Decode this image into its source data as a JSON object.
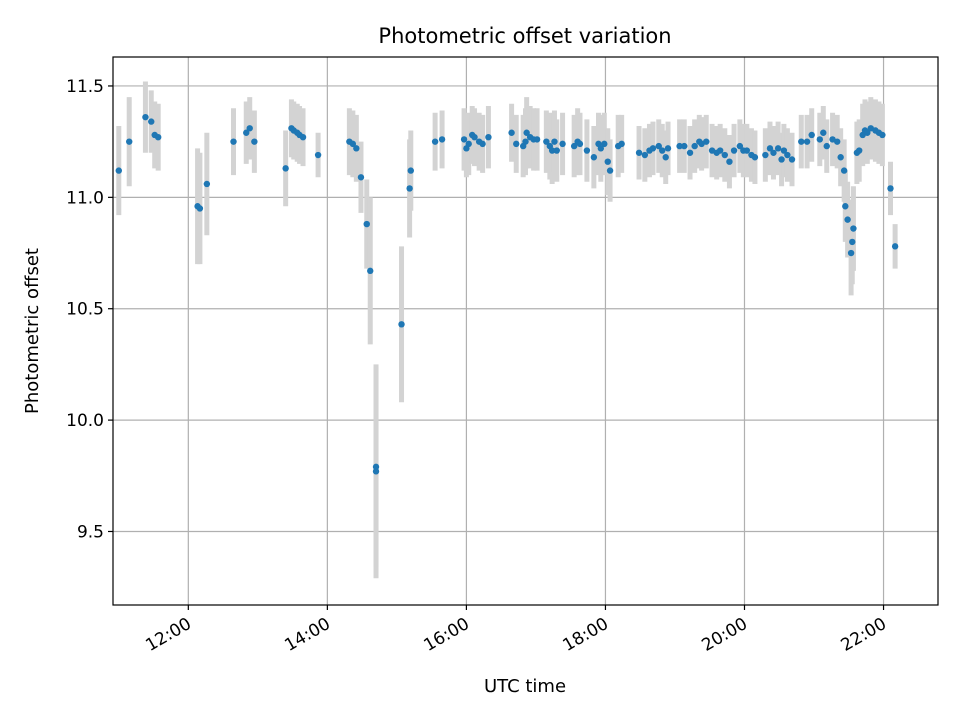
{
  "chart_data": {
    "type": "scatter",
    "title": "Photometric offset variation",
    "xlabel": "UTC time",
    "ylabel": "Photometric offset",
    "xlim": [
      "10:55",
      "22:47"
    ],
    "ylim": [
      9.17,
      11.63
    ],
    "x_ticks": [
      "12:00",
      "14:00",
      "16:00",
      "18:00",
      "20:00",
      "22:00"
    ],
    "y_ticks": [
      9.5,
      10.0,
      10.5,
      11.0,
      11.5
    ],
    "y_tick_labels": [
      "9.5",
      "10.0",
      "10.5",
      "11.0",
      "11.5"
    ],
    "x_tick_rotation_deg": 30,
    "grid": true,
    "legend": "none",
    "colors": {
      "point": "#1f77b4",
      "error_bar": "#d3d3d3",
      "grid": "#b0b0b0"
    },
    "series": [
      {
        "x": [
          "11:00",
          "11:09",
          "11:23",
          "11:28",
          "11:31",
          "11:34",
          "12:08",
          "12:10",
          "12:16",
          "12:39",
          "12:50",
          "12:53",
          "12:57",
          "13:24",
          "13:29",
          "13:31",
          "13:34",
          "13:36",
          "13:39",
          "13:52",
          "14:19",
          "14:22",
          "14:25",
          "14:29",
          "14:34",
          "14:37",
          "14:42",
          "14:42",
          "15:04",
          "15:11",
          "15:12",
          "15:33",
          "15:39",
          "15:58",
          "16:00",
          "16:02",
          "16:05",
          "16:07",
          "16:11",
          "16:14",
          "16:19",
          "16:39",
          "16:43",
          "16:49",
          "16:51",
          "16:52",
          "16:55",
          "16:58",
          "17:01",
          "17:09",
          "17:12",
          "17:14",
          "17:16",
          "17:18",
          "17:23",
          "17:33",
          "17:36",
          "17:38",
          "17:44",
          "17:50",
          "17:54",
          "17:56",
          "17:59",
          "18:02",
          "18:04",
          "18:11",
          "18:14",
          "18:29",
          "18:34",
          "18:38",
          "18:41",
          "18:46",
          "18:49",
          "18:52",
          "18:54",
          "19:04",
          "19:08",
          "19:13",
          "19:17",
          "19:21",
          "19:23",
          "19:27",
          "19:32",
          "19:36",
          "19:39",
          "19:43",
          "19:47",
          "19:51",
          "19:56",
          "19:59",
          "20:02",
          "20:06",
          "20:09",
          "20:18",
          "20:22",
          "20:25",
          "20:29",
          "20:32",
          "20:34",
          "20:37",
          "20:41",
          "20:49",
          "20:54",
          "20:58",
          "21:05",
          "21:08",
          "21:11",
          "21:16",
          "21:20",
          "21:23",
          "21:26",
          "21:27",
          "21:29",
          "21:32",
          "21:33",
          "21:34",
          "21:37",
          "21:39",
          "21:42",
          "21:44",
          "21:46",
          "21:49",
          "21:53",
          "21:56",
          "21:59",
          "22:06",
          "22:10"
        ],
        "y": [
          11.12,
          11.25,
          11.36,
          11.34,
          11.28,
          11.27,
          10.96,
          10.95,
          11.06,
          11.25,
          11.29,
          11.31,
          11.25,
          11.13,
          11.31,
          11.3,
          11.29,
          11.28,
          11.27,
          11.19,
          11.25,
          11.24,
          11.22,
          11.09,
          10.88,
          10.67,
          9.77,
          9.79,
          10.43,
          11.04,
          11.12,
          11.25,
          11.26,
          11.26,
          11.22,
          11.24,
          11.28,
          11.27,
          11.25,
          11.24,
          11.27,
          11.29,
          11.24,
          11.23,
          11.25,
          11.29,
          11.27,
          11.26,
          11.26,
          11.25,
          11.23,
          11.21,
          11.25,
          11.21,
          11.24,
          11.23,
          11.25,
          11.24,
          11.21,
          11.18,
          11.24,
          11.22,
          11.24,
          11.16,
          11.12,
          11.23,
          11.24,
          11.2,
          11.19,
          11.21,
          11.22,
          11.23,
          11.21,
          11.18,
          11.22,
          11.23,
          11.23,
          11.2,
          11.23,
          11.25,
          11.24,
          11.25,
          11.21,
          11.2,
          11.21,
          11.19,
          11.16,
          11.21,
          11.23,
          11.21,
          11.21,
          11.19,
          11.18,
          11.19,
          11.22,
          11.2,
          11.22,
          11.17,
          11.21,
          11.19,
          11.17,
          11.25,
          11.25,
          11.28,
          11.26,
          11.29,
          11.23,
          11.26,
          11.25,
          11.18,
          11.12,
          10.96,
          10.9,
          10.75,
          10.8,
          10.86,
          11.2,
          11.21,
          11.28,
          11.3,
          11.29,
          11.31,
          11.3,
          11.29,
          11.28,
          11.04,
          10.78
        ],
        "err": [
          0.2,
          0.2,
          0.16,
          0.14,
          0.15,
          0.15,
          0.26,
          0.25,
          0.23,
          0.15,
          0.14,
          0.14,
          0.14,
          0.17,
          0.13,
          0.13,
          0.13,
          0.13,
          0.13,
          0.1,
          0.15,
          0.15,
          0.15,
          0.16,
          0.2,
          0.33,
          0.48,
          0.45,
          0.35,
          0.22,
          0.18,
          0.13,
          0.13,
          0.14,
          0.13,
          0.14,
          0.13,
          0.13,
          0.13,
          0.13,
          0.14,
          0.13,
          0.13,
          0.14,
          0.15,
          0.16,
          0.14,
          0.14,
          0.14,
          0.14,
          0.15,
          0.15,
          0.14,
          0.14,
          0.14,
          0.14,
          0.15,
          0.14,
          0.14,
          0.14,
          0.14,
          0.15,
          0.14,
          0.15,
          0.14,
          0.14,
          0.13,
          0.12,
          0.12,
          0.12,
          0.12,
          0.12,
          0.12,
          0.12,
          0.12,
          0.12,
          0.12,
          0.12,
          0.12,
          0.12,
          0.12,
          0.12,
          0.12,
          0.12,
          0.12,
          0.12,
          0.12,
          0.12,
          0.12,
          0.12,
          0.12,
          0.12,
          0.12,
          0.12,
          0.12,
          0.12,
          0.12,
          0.12,
          0.12,
          0.12,
          0.12,
          0.12,
          0.12,
          0.12,
          0.12,
          0.12,
          0.12,
          0.12,
          0.12,
          0.13,
          0.14,
          0.16,
          0.17,
          0.19,
          0.19,
          0.19,
          0.14,
          0.14,
          0.14,
          0.14,
          0.14,
          0.14,
          0.14,
          0.14,
          0.14,
          0.12,
          0.1
        ]
      }
    ]
  }
}
